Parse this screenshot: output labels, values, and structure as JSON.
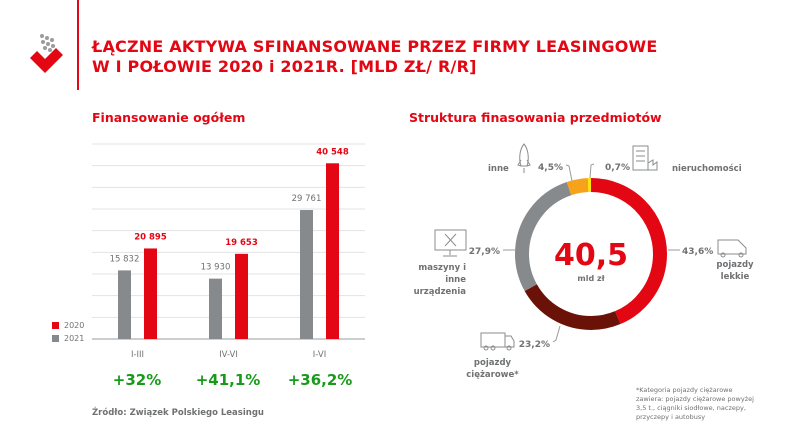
{
  "header": {
    "title_line1": "ŁĄCZNE AKTYWA SFINANSOWANE PRZEZ FIRMY LEASINGOWE",
    "title_line2": "W I POŁOWIE 2020 i 2021R. [MLD ZŁ/ R/R]"
  },
  "colors": {
    "red": "#e30613",
    "gray": "#878a8c",
    "dark_red": "#6b1208",
    "orange": "#f7a21b",
    "yellow": "#ffe600",
    "green": "#1a9a1a"
  },
  "source": "Źródło: Związek Polskiego Leasingu",
  "chart_data": [
    {
      "type": "bar",
      "title": "Finansowanie ogółem",
      "categories": [
        "I-III",
        "IV-VI",
        "I-VI"
      ],
      "series": [
        {
          "name": "2021",
          "color": "#878a8c",
          "values": [
            15832,
            13930,
            29761
          ],
          "labels": [
            "15 832",
            "13 930",
            "29 761"
          ]
        },
        {
          "name": "2020",
          "color": "#e30613",
          "values": [
            20895,
            19653,
            40548
          ],
          "labels": [
            "20 895",
            "19 653",
            "40 548"
          ]
        }
      ],
      "legend": [
        "2020",
        "2021"
      ],
      "legend_position": "left",
      "ylim": [
        0,
        45000
      ],
      "grid": true,
      "growth": [
        "+32%",
        "+41,1%",
        "+36,2%"
      ]
    },
    {
      "type": "pie",
      "donut": true,
      "title": "Struktura finasowania przedmiotów",
      "center_value": "40,5",
      "center_unit": "mld zł",
      "slices": [
        {
          "label": "pojazdy lekkie",
          "value": 43.6,
          "text": "43,6%",
          "color": "#e30613",
          "icon": "van-icon"
        },
        {
          "label": "pojazdy ciężarowe*",
          "value": 23.2,
          "text": "23,2%",
          "color": "#6b1208",
          "icon": "truck-icon"
        },
        {
          "label": "maszyny i inne urządzenia",
          "value": 27.9,
          "text": "27,9%",
          "color": "#878a8c",
          "icon": "monitor-tools-icon"
        },
        {
          "label": "inne",
          "value": 4.5,
          "text": "4,5%",
          "color": "#f7a21b",
          "icon": "rocket-icon"
        },
        {
          "label": "nieruchomości",
          "value": 0.7,
          "text": "0,7%",
          "color": "#ffe600",
          "icon": "building-icon"
        }
      ],
      "footnote": [
        "*Kategoria pojazdy ciężarowe",
        "zawiera: pojazdy ciężarowe powyżej",
        "3,5 t., ciągniki siodłowe, naczepy,",
        "przyczepy i autobusy"
      ]
    }
  ]
}
